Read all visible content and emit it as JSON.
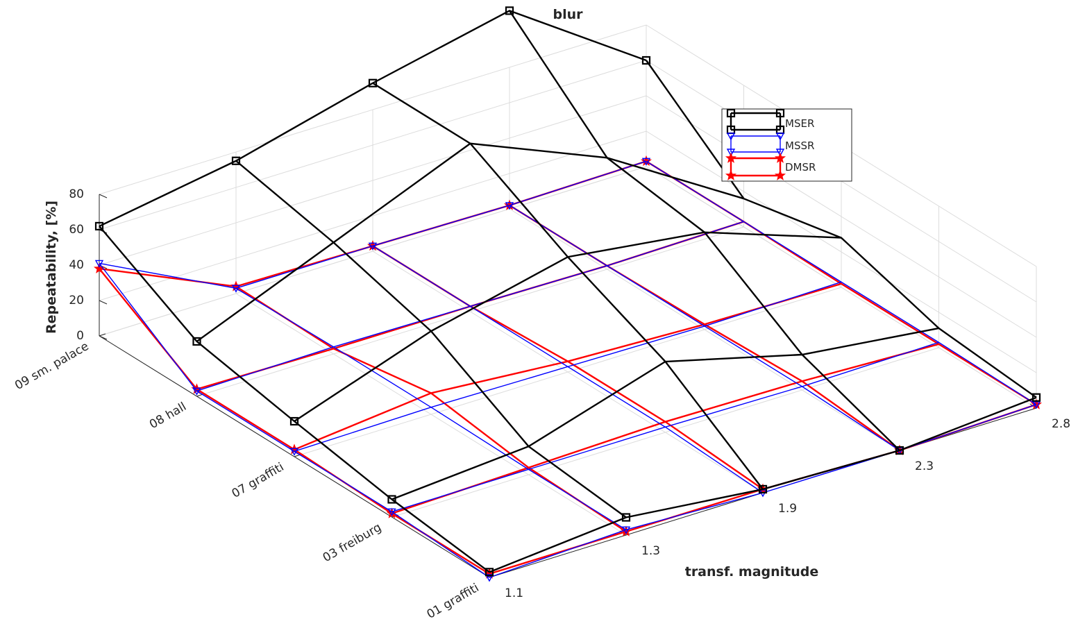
{
  "chart_data": {
    "type": "line",
    "projection": "3d",
    "title": "blur",
    "xlabel": "",
    "ylabel": "transf. magnitude",
    "zlabel": "Repeatability, [%]",
    "x_categories": [
      "01 graffiti",
      "03 freiburg",
      "07 graffiti",
      "08 hall",
      "09 sm. palace"
    ],
    "y_ticks": [
      "1.1",
      "1.3",
      "1.9",
      "2.3",
      "2.8"
    ],
    "z_ticks": [
      "0",
      "20",
      "40",
      "60",
      "80"
    ],
    "zlim": [
      0,
      80
    ],
    "grid": true,
    "legend_position": "top-right",
    "series": [
      {
        "name": "MSER",
        "color": "#000000",
        "marker": "square",
        "values": [
          [
            3,
            10,
            2,
            0,
            6
          ],
          [
            10,
            16,
            40,
            20,
            11
          ],
          [
            20,
            47,
            65,
            55,
            28
          ],
          [
            31,
            63,
            95,
            63,
            16
          ],
          [
            62,
            75,
            95,
            112,
            60
          ]
        ]
      },
      {
        "name": "MSSR",
        "color": "#0000ff",
        "marker": "triangle-down",
        "values": [
          [
            0,
            3,
            0,
            0,
            2
          ],
          [
            3,
            3,
            3,
            2,
            3
          ],
          [
            3,
            4,
            3,
            2,
            3
          ],
          [
            3,
            4,
            3,
            2,
            3
          ],
          [
            41,
            3,
            3,
            2,
            3
          ]
        ]
      },
      {
        "name": "DMSR",
        "color": "#ff0000",
        "marker": "pentagram",
        "values": [
          [
            2,
            2,
            2,
            0,
            2
          ],
          [
            2,
            4,
            6,
            5,
            2
          ],
          [
            4,
            12,
            6,
            3,
            2
          ],
          [
            4,
            3,
            3,
            2,
            3
          ],
          [
            38,
            4,
            3,
            2,
            3
          ]
        ]
      }
    ]
  }
}
